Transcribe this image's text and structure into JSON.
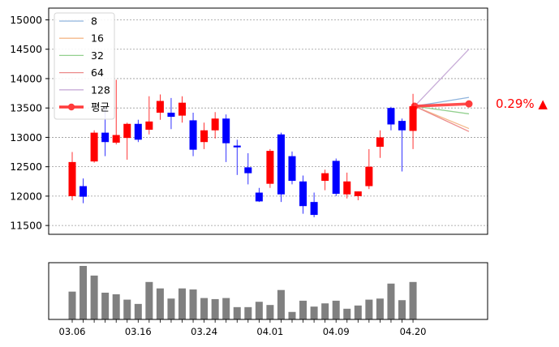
{
  "chart_data": [
    {
      "type": "candlestick",
      "y_ticks": [
        11500,
        12000,
        12500,
        13000,
        13500,
        14000,
        14500,
        15000
      ],
      "ylim": [
        11350,
        15200
      ],
      "grid": true,
      "legend_position": "top-left",
      "legend": [
        {
          "label": "8",
          "color": "#8fb4dd"
        },
        {
          "label": "16",
          "color": "#f4b98a"
        },
        {
          "label": "32",
          "color": "#93d08f"
        },
        {
          "label": "64",
          "color": "#ec8a8a"
        },
        {
          "label": "128",
          "color": "#c8acd8"
        },
        {
          "label": "평균",
          "color": "#ff3b3b"
        }
      ],
      "up_color": "#ff0000",
      "down_color": "#0000ff",
      "candles": [
        {
          "o": 12000,
          "h": 12750,
          "l": 11930,
          "c": 12580
        },
        {
          "o": 12170,
          "h": 12300,
          "l": 11880,
          "c": 11990
        },
        {
          "o": 12590,
          "h": 13120,
          "l": 12570,
          "c": 13080
        },
        {
          "o": 13080,
          "h": 13500,
          "l": 12680,
          "c": 12920
        },
        {
          "o": 12910,
          "h": 13980,
          "l": 12880,
          "c": 13040
        },
        {
          "o": 12990,
          "h": 13250,
          "l": 12620,
          "c": 13230
        },
        {
          "o": 13230,
          "h": 13300,
          "l": 12920,
          "c": 12960
        },
        {
          "o": 13130,
          "h": 13700,
          "l": 13050,
          "c": 13270
        },
        {
          "o": 13420,
          "h": 13730,
          "l": 13300,
          "c": 13620
        },
        {
          "o": 13420,
          "h": 13670,
          "l": 13140,
          "c": 13350
        },
        {
          "o": 13370,
          "h": 13700,
          "l": 13250,
          "c": 13590
        },
        {
          "o": 13290,
          "h": 13420,
          "l": 12680,
          "c": 12790
        },
        {
          "o": 12920,
          "h": 13250,
          "l": 12800,
          "c": 13120
        },
        {
          "o": 13120,
          "h": 13430,
          "l": 12980,
          "c": 13320
        },
        {
          "o": 13320,
          "h": 13390,
          "l": 12580,
          "c": 12900
        },
        {
          "o": 12860,
          "h": 12960,
          "l": 12360,
          "c": 12830
        },
        {
          "o": 12490,
          "h": 12730,
          "l": 12200,
          "c": 12390
        },
        {
          "o": 12060,
          "h": 12140,
          "l": 11900,
          "c": 11910
        },
        {
          "o": 12210,
          "h": 12800,
          "l": 12140,
          "c": 12770
        },
        {
          "o": 13050,
          "h": 13080,
          "l": 11900,
          "c": 12030
        },
        {
          "o": 12680,
          "h": 12760,
          "l": 12200,
          "c": 12260
        },
        {
          "o": 12250,
          "h": 12350,
          "l": 11700,
          "c": 11830
        },
        {
          "o": 11900,
          "h": 12060,
          "l": 11640,
          "c": 11680
        },
        {
          "o": 12260,
          "h": 12450,
          "l": 12100,
          "c": 12390
        },
        {
          "o": 12600,
          "h": 12640,
          "l": 12000,
          "c": 12040
        },
        {
          "o": 12030,
          "h": 12400,
          "l": 11960,
          "c": 12250
        },
        {
          "o": 12000,
          "h": 12080,
          "l": 11930,
          "c": 12080
        },
        {
          "o": 12170,
          "h": 12800,
          "l": 12120,
          "c": 12500
        },
        {
          "o": 12840,
          "h": 13120,
          "l": 12650,
          "c": 13000
        },
        {
          "o": 13500,
          "h": 13520,
          "l": 13120,
          "c": 13220
        },
        {
          "o": 13280,
          "h": 13320,
          "l": 12420,
          "c": 13120
        },
        {
          "o": 13110,
          "h": 13740,
          "l": 12800,
          "c": 13530
        }
      ],
      "projection": {
        "start": 13530,
        "lines": [
          {
            "label": "8",
            "end": 13680
          },
          {
            "label": "16",
            "end": 13150
          },
          {
            "label": "32",
            "end": 13400
          },
          {
            "label": "64",
            "end": 13100
          },
          {
            "label": "128",
            "end": 14500
          }
        ],
        "average_end": 13570,
        "change_label": "0.29% ▲"
      }
    },
    {
      "type": "bar",
      "series_color": "#808080",
      "x_labels": [
        {
          "index": 0,
          "label": "03.06"
        },
        {
          "index": 6,
          "label": "03.16"
        },
        {
          "index": 12,
          "label": "03.24"
        },
        {
          "index": 18,
          "label": "04.01"
        },
        {
          "index": 24,
          "label": "04.09"
        },
        {
          "index": 31,
          "label": "04.20"
        }
      ],
      "volumes": [
        52,
        100,
        82,
        50,
        47,
        37,
        29,
        70,
        58,
        39,
        58,
        56,
        40,
        38,
        40,
        23,
        23,
        33,
        27,
        55,
        14,
        35,
        24,
        30,
        35,
        20,
        26,
        37,
        39,
        67,
        36,
        70
      ]
    }
  ]
}
